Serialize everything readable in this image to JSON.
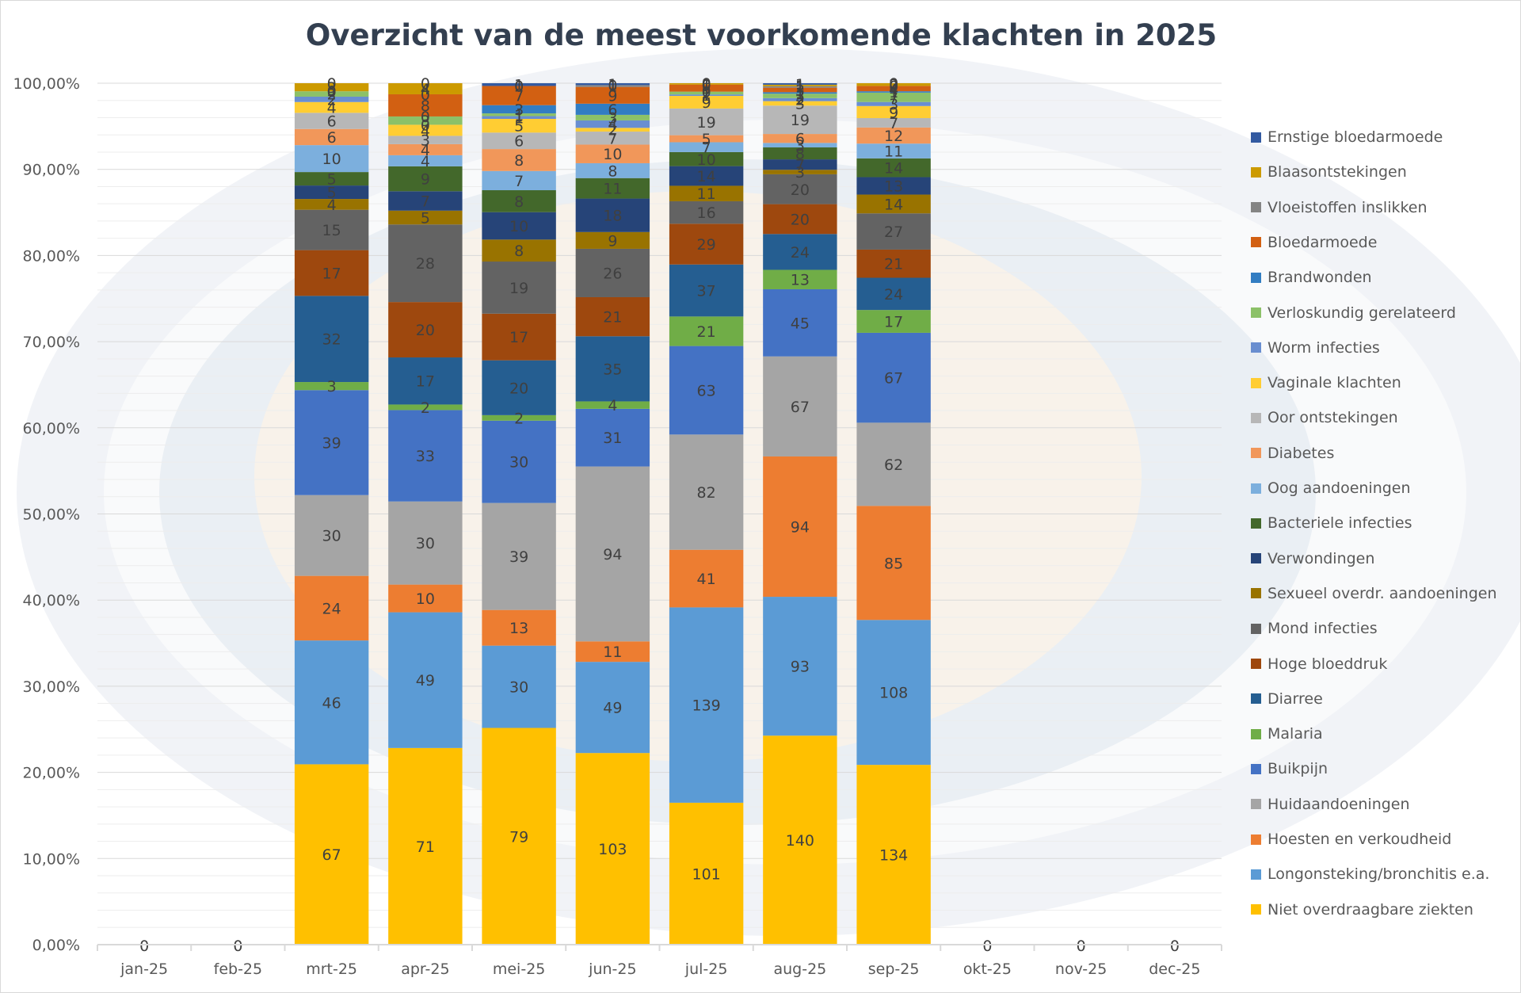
{
  "chart_data": {
    "type": "bar",
    "stacking": "percent",
    "title": "Overzicht van de meest voorkomende klachten in 2025",
    "xlabel": "",
    "ylabel": "",
    "ylim": [
      0,
      1
    ],
    "y_ticks": [
      "0,00%",
      "10,00%",
      "20,00%",
      "30,00%",
      "40,00%",
      "50,00%",
      "60,00%",
      "70,00%",
      "80,00%",
      "90,00%",
      "100,00%"
    ],
    "grid": true,
    "legend_position": "right",
    "categories": [
      "jan-25",
      "feb-25",
      "mrt-25",
      "apr-25",
      "mei-25",
      "jun-25",
      "jul-25",
      "aug-25",
      "sep-25",
      "okt-25",
      "nov-25",
      "dec-25"
    ],
    "empty_labels": [
      "0",
      "0",
      "",
      "",
      "",
      "",
      "",
      "",
      "",
      "0",
      "0",
      "0"
    ],
    "series": [
      {
        "name": "Niet overdraagbare ziekten",
        "color": "#ffc000",
        "values": [
          0,
          0,
          67,
          71,
          79,
          103,
          101,
          140,
          134,
          0,
          0,
          0
        ]
      },
      {
        "name": "Longonsteking/bronchitis e.a.",
        "color": "#5b9bd5",
        "values": [
          0,
          0,
          46,
          49,
          30,
          49,
          139,
          93,
          108,
          0,
          0,
          0
        ]
      },
      {
        "name": "Hoesten en verkoudheid",
        "color": "#ed7d31",
        "values": [
          0,
          0,
          24,
          10,
          13,
          11,
          41,
          94,
          85,
          0,
          0,
          0
        ]
      },
      {
        "name": "Huidaandoeningen",
        "color": "#a5a5a5",
        "values": [
          0,
          0,
          30,
          30,
          39,
          94,
          82,
          67,
          62,
          0,
          0,
          0
        ]
      },
      {
        "name": "Buikpijn",
        "color": "#4472c4",
        "values": [
          0,
          0,
          39,
          33,
          30,
          31,
          63,
          45,
          67,
          0,
          0,
          0
        ]
      },
      {
        "name": "Malaria",
        "color": "#70ad47",
        "values": [
          0,
          0,
          3,
          2,
          2,
          4,
          21,
          13,
          17,
          0,
          0,
          0
        ]
      },
      {
        "name": "Diarree",
        "color": "#255e91",
        "values": [
          0,
          0,
          32,
          17,
          20,
          35,
          37,
          24,
          24,
          0,
          0,
          0
        ]
      },
      {
        "name": "Hoge bloeddruk",
        "color": "#9e480e",
        "values": [
          0,
          0,
          17,
          20,
          17,
          21,
          29,
          20,
          21,
          0,
          0,
          0
        ]
      },
      {
        "name": "Mond infecties",
        "color": "#636363",
        "values": [
          0,
          0,
          15,
          28,
          19,
          26,
          16,
          20,
          27,
          0,
          0,
          0
        ]
      },
      {
        "name": "Sexueel overdr. aandoeningen",
        "color": "#997300",
        "values": [
          0,
          0,
          4,
          5,
          8,
          9,
          11,
          3,
          14,
          0,
          0,
          0
        ]
      },
      {
        "name": "Verwondingen",
        "color": "#264478",
        "values": [
          0,
          0,
          5,
          7,
          10,
          18,
          14,
          7,
          13,
          0,
          0,
          0
        ]
      },
      {
        "name": "Bacteriele infecties",
        "color": "#43682b",
        "values": [
          0,
          0,
          5,
          9,
          8,
          11,
          10,
          8,
          14,
          0,
          0,
          0
        ]
      },
      {
        "name": "Oog aandoeningen",
        "color": "#7cafdd",
        "values": [
          0,
          0,
          10,
          4,
          7,
          8,
          7,
          3,
          11,
          0,
          0,
          0
        ]
      },
      {
        "name": "Diabetes",
        "color": "#f1975a",
        "values": [
          0,
          0,
          6,
          4,
          8,
          10,
          5,
          6,
          12,
          0,
          0,
          0
        ]
      },
      {
        "name": "Oor ontstekingen",
        "color": "#b7b7b7",
        "values": [
          0,
          0,
          6,
          3,
          6,
          7,
          19,
          19,
          7,
          0,
          0,
          0
        ]
      },
      {
        "name": "Vaginale klachten",
        "color": "#ffcd33",
        "values": [
          0,
          0,
          4,
          4,
          5,
          2,
          9,
          3,
          9,
          0,
          0,
          0
        ]
      },
      {
        "name": "Worm infecties",
        "color": "#698ed0",
        "values": [
          0,
          0,
          2,
          0,
          1,
          4,
          1,
          2,
          3,
          0,
          0,
          0
        ]
      },
      {
        "name": "Verloskundig gerelateerd",
        "color": "#8cc168",
        "values": [
          0,
          0,
          2,
          3,
          1,
          3,
          2,
          3,
          7,
          0,
          0,
          0
        ]
      },
      {
        "name": "Brandwonden",
        "color": "#327dc2",
        "values": [
          0,
          0,
          0,
          0,
          3,
          6,
          0,
          1,
          1,
          0,
          0,
          0
        ]
      },
      {
        "name": "Bloedarmoede",
        "color": "#d26012",
        "values": [
          0,
          0,
          0,
          8,
          7,
          9,
          5,
          3,
          4,
          0,
          0,
          0
        ]
      },
      {
        "name": "Vloeistoffen inslikken",
        "color": "#848484",
        "values": [
          0,
          0,
          0,
          0,
          0,
          1,
          0,
          1,
          0,
          0,
          0,
          0
        ]
      },
      {
        "name": "Blaasontstekingen",
        "color": "#cc9a00",
        "values": [
          0,
          0,
          3,
          4,
          0,
          0,
          1,
          1,
          2,
          0,
          0,
          0
        ]
      },
      {
        "name": "Ernstige bloedarmoede",
        "color": "#335aa1",
        "values": [
          0,
          0,
          0,
          0,
          1,
          1,
          0,
          1,
          0,
          0,
          0,
          0
        ]
      }
    ]
  }
}
